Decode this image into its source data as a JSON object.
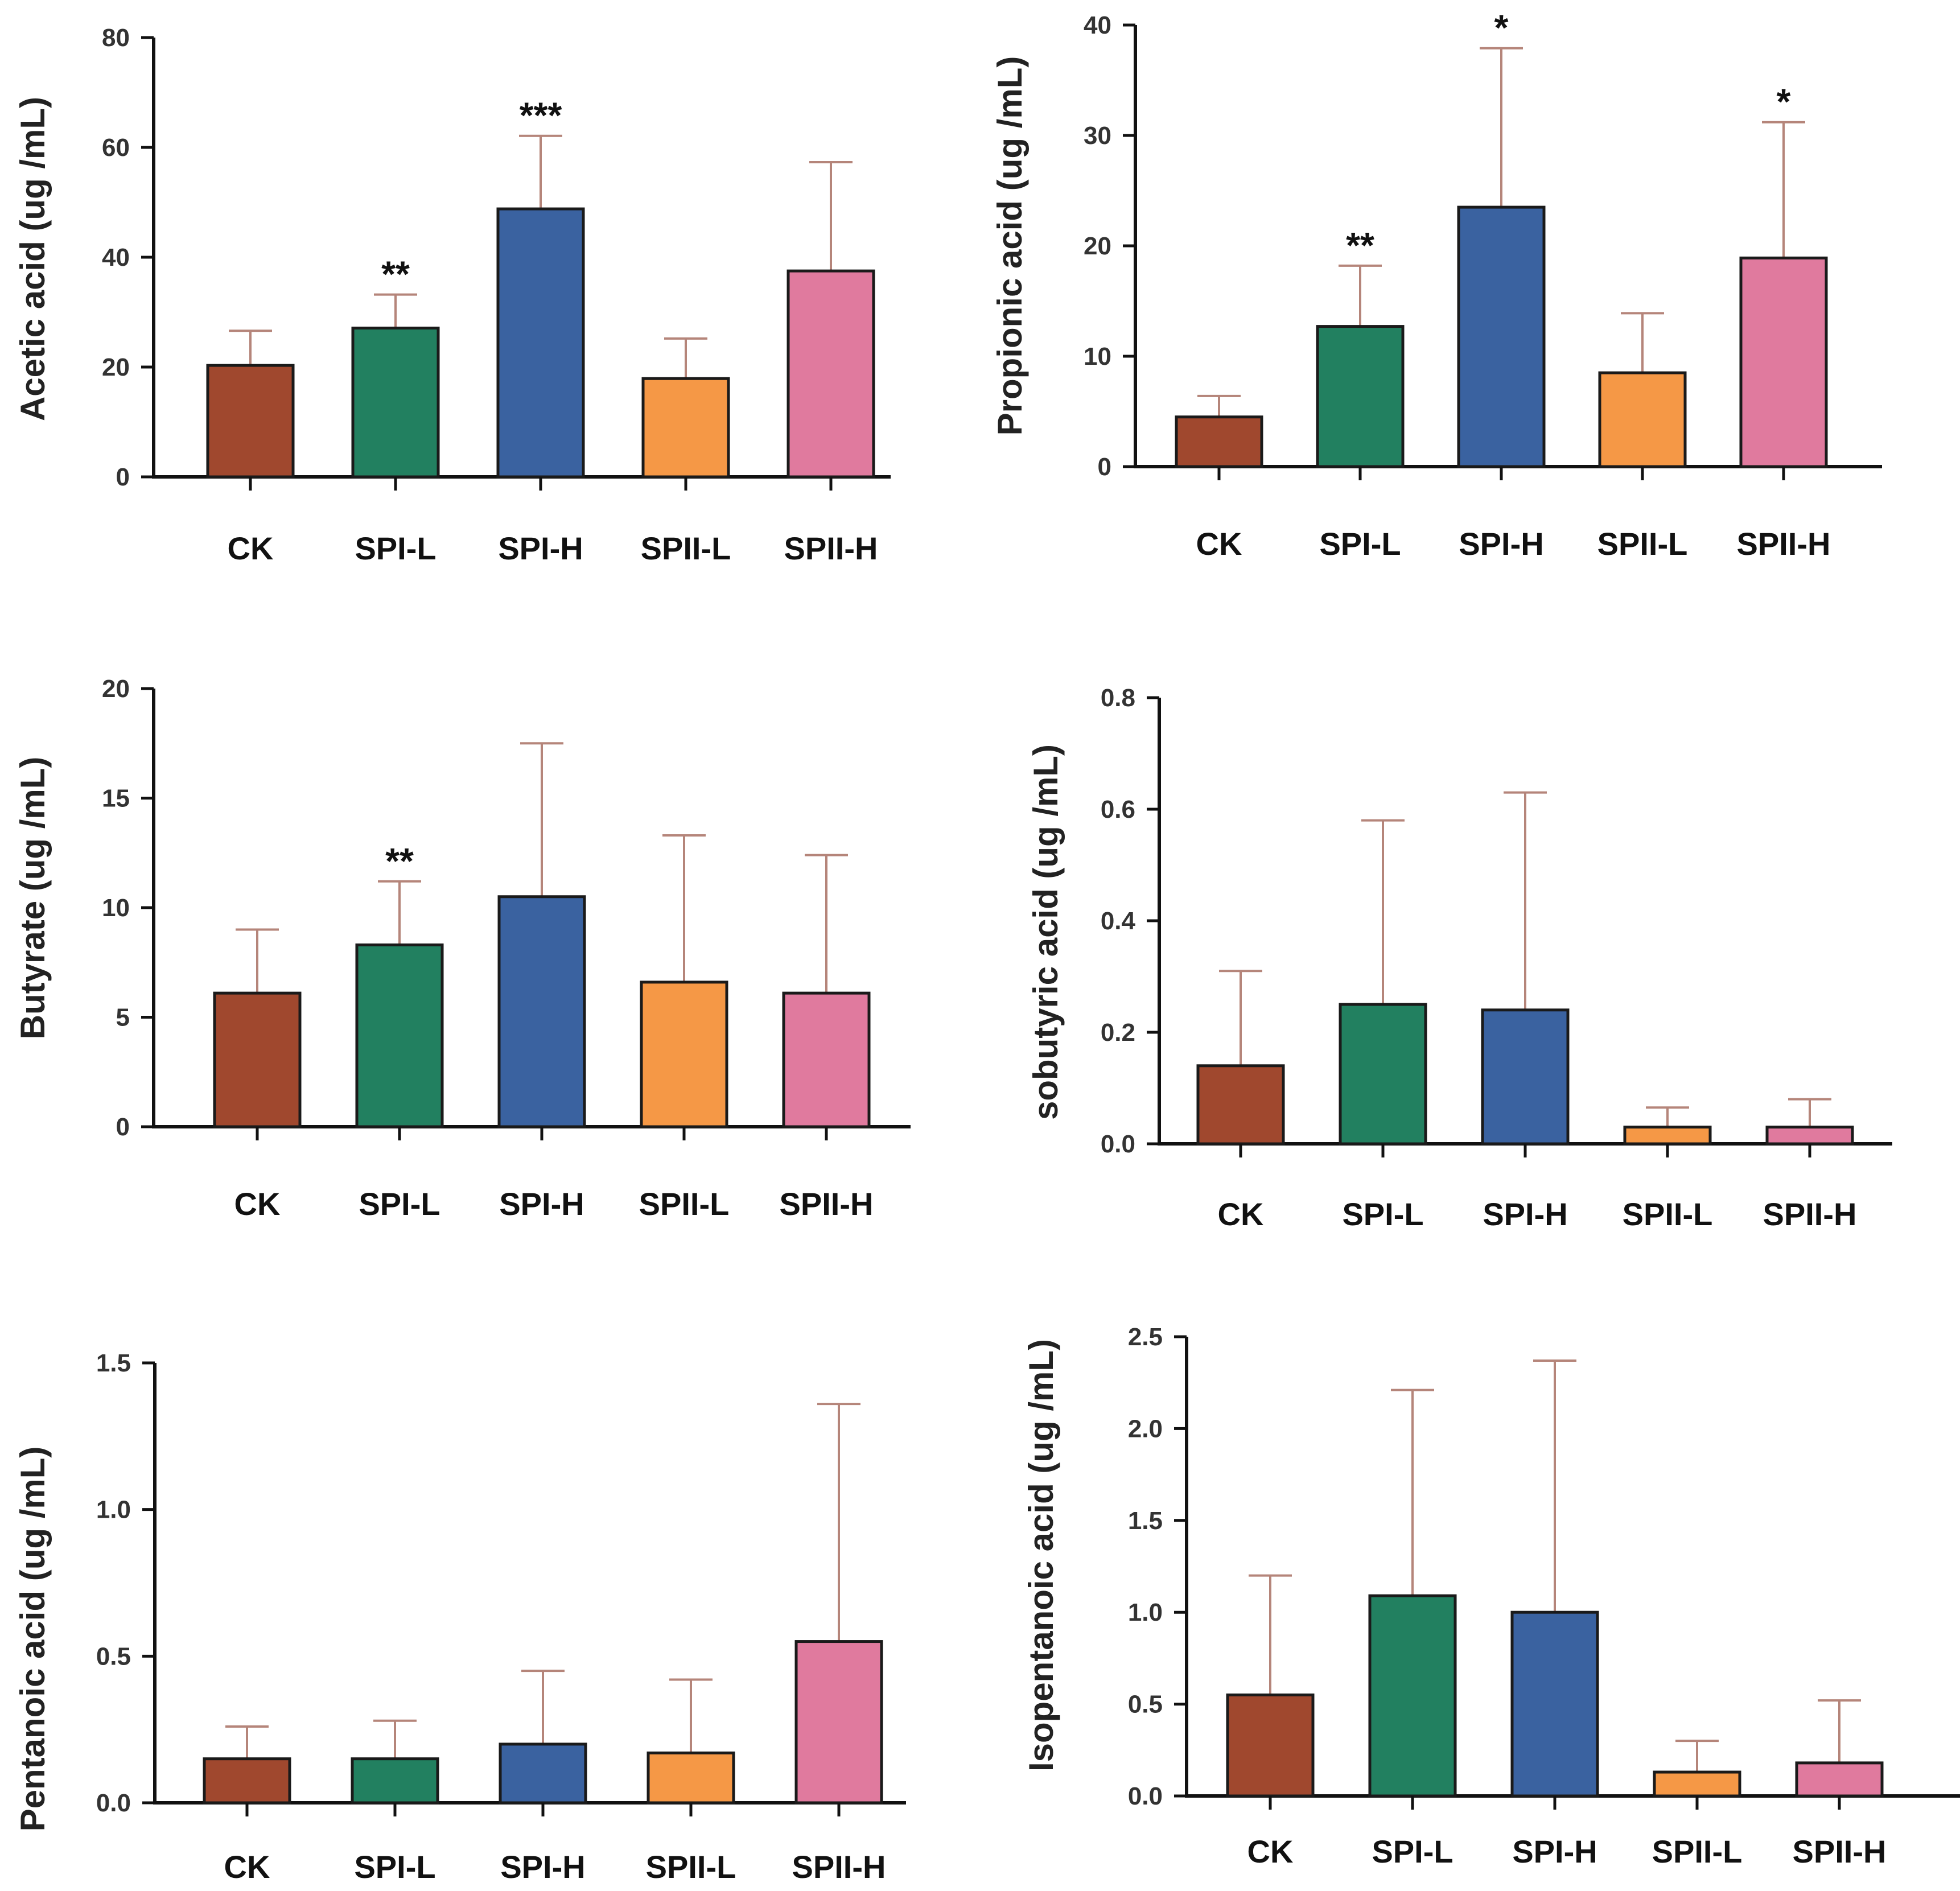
{
  "figure": {
    "colors": {
      "axis": "#111111",
      "whisker": "#b5857a"
    }
  },
  "chart_data": [
    {
      "type": "bar",
      "ylabel": "Acetic acid (ug /mL)",
      "categories": [
        "CK",
        "SPI-L",
        "SPI-H",
        "SPII-L",
        "SPII-H"
      ],
      "values": [
        20.3,
        27.1,
        48.8,
        17.9,
        37.5
      ],
      "errors": [
        6.3,
        6.1,
        13.3,
        7.3,
        19.8
      ],
      "significance": [
        "",
        "**",
        "***",
        "",
        ""
      ],
      "colors": [
        "#a0482e",
        "#228060",
        "#3a62a0",
        "#f59846",
        "#e07a9e"
      ],
      "ylim": [
        0,
        80
      ],
      "yticks": [
        0,
        20,
        40,
        60,
        80
      ],
      "ytick_labels": [
        "0",
        "20",
        "40",
        "60",
        "80"
      ]
    },
    {
      "type": "bar",
      "ylabel": "Propionic acid (ug /mL)",
      "categories": [
        "CK",
        "SPI-L",
        "SPI-H",
        "SPII-L",
        "SPII-H"
      ],
      "values": [
        4.5,
        12.7,
        23.5,
        8.5,
        18.9
      ],
      "errors": [
        1.9,
        5.5,
        14.4,
        5.4,
        12.3
      ],
      "significance": [
        "",
        "**",
        "*",
        "",
        "*"
      ],
      "colors": [
        "#a0482e",
        "#228060",
        "#3a62a0",
        "#f59846",
        "#e07a9e"
      ],
      "ylim": [
        0,
        40
      ],
      "yticks": [
        0,
        10,
        20,
        30,
        40
      ],
      "ytick_labels": [
        "0",
        "10",
        "20",
        "30",
        "40"
      ]
    },
    {
      "type": "bar",
      "ylabel": "Butyrate (ug /mL)",
      "categories": [
        "CK",
        "SPI-L",
        "SPI-H",
        "SPII-L",
        "SPII-H"
      ],
      "values": [
        6.1,
        8.3,
        10.5,
        6.6,
        6.1
      ],
      "errors": [
        2.9,
        2.9,
        7.0,
        6.7,
        6.3
      ],
      "significance": [
        "",
        "**",
        "",
        "",
        ""
      ],
      "colors": [
        "#a0482e",
        "#228060",
        "#3a62a0",
        "#f59846",
        "#e07a9e"
      ],
      "ylim": [
        0,
        20
      ],
      "yticks": [
        0,
        5,
        10,
        15,
        20
      ],
      "ytick_labels": [
        "0",
        "5",
        "10",
        "15",
        "20"
      ]
    },
    {
      "type": "bar",
      "ylabel": "sobutyric acid (ug /mL)",
      "categories": [
        "CK",
        "SPI-L",
        "SPI-H",
        "SPII-L",
        "SPII-H"
      ],
      "values": [
        0.14,
        0.25,
        0.24,
        0.03,
        0.03
      ],
      "errors": [
        0.17,
        0.33,
        0.39,
        0.035,
        0.05
      ],
      "significance": [
        "",
        "",
        "",
        "",
        ""
      ],
      "colors": [
        "#a0482e",
        "#228060",
        "#3a62a0",
        "#f59846",
        "#e07a9e"
      ],
      "ylim": [
        0,
        0.8
      ],
      "yticks": [
        0,
        0.2,
        0.4,
        0.6,
        0.8
      ],
      "ytick_labels": [
        "0.0",
        "0.2",
        "0.4",
        "0.6",
        "0.8"
      ]
    },
    {
      "type": "bar",
      "ylabel": "Pentanoic  acid (ug /mL)",
      "categories": [
        "CK",
        "SPI-L",
        "SPI-H",
        "SPII-L",
        "SPII-H"
      ],
      "values": [
        0.15,
        0.15,
        0.2,
        0.17,
        0.55
      ],
      "errors": [
        0.11,
        0.13,
        0.25,
        0.25,
        0.81
      ],
      "significance": [
        "",
        "",
        "",
        "",
        ""
      ],
      "colors": [
        "#a0482e",
        "#228060",
        "#3a62a0",
        "#f59846",
        "#e07a9e"
      ],
      "ylim": [
        0,
        1.5
      ],
      "yticks": [
        0,
        0.5,
        1.0,
        1.5
      ],
      "ytick_labels": [
        "0.0",
        "0.5",
        "1.0",
        "1.5"
      ]
    },
    {
      "type": "bar",
      "ylabel": "Isopentanoic  acid (ug /mL)",
      "categories": [
        "CK",
        "SPI-L",
        "SPI-H",
        "SPII-L",
        "SPII-H"
      ],
      "values": [
        0.55,
        1.09,
        1.0,
        0.13,
        0.18
      ],
      "errors": [
        0.65,
        1.12,
        1.37,
        0.17,
        0.34
      ],
      "significance": [
        "",
        "",
        "",
        "",
        ""
      ],
      "colors": [
        "#a0482e",
        "#228060",
        "#3a62a0",
        "#f59846",
        "#e07a9e"
      ],
      "ylim": [
        0,
        2.5
      ],
      "yticks": [
        0,
        0.5,
        1.0,
        1.5,
        2.0,
        2.5
      ],
      "ytick_labels": [
        "0.0",
        "0.5",
        "1.0",
        "1.5",
        "2.0",
        "2.5"
      ]
    }
  ]
}
